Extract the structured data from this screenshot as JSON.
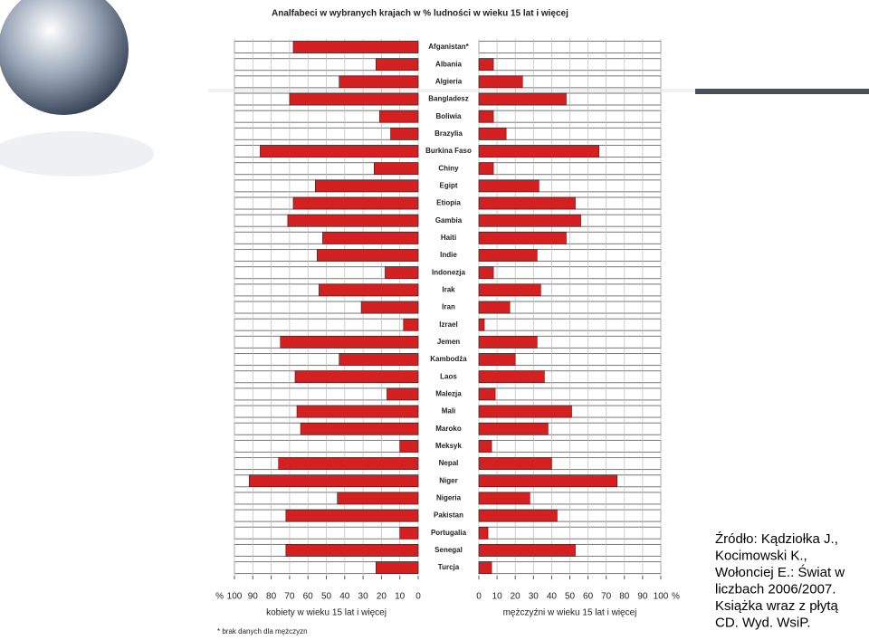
{
  "chart_data": {
    "type": "butterfly",
    "title": "Analfabeci w wybranych krajach w % ludności w wieku 15 lat i więcej",
    "categories": [
      "Afganistan*",
      "Albania",
      "Algieria",
      "Bangladesz",
      "Boliwia",
      "Brazylia",
      "Burkina Faso",
      "Chiny",
      "Egipt",
      "Etiopia",
      "Gambia",
      "Haiti",
      "Indie",
      "Indonezja",
      "Irak",
      "Iran",
      "Izrael",
      "Jemen",
      "Kambodża",
      "Laos",
      "Malezja",
      "Mali",
      "Maroko",
      "Meksyk",
      "Nepal",
      "Niger",
      "Nigeria",
      "Pakistan",
      "Portugalia",
      "Senegal",
      "Turcja"
    ],
    "series": [
      {
        "name": "kobiety w wieku 15 lat i więcej",
        "color": "#d42020",
        "values": [
          68,
          23,
          43,
          70,
          21,
          15,
          86,
          24,
          56,
          68,
          71,
          52,
          55,
          18,
          54,
          31,
          8,
          75,
          43,
          67,
          17,
          66,
          64,
          10,
          76,
          92,
          44,
          72,
          10,
          72,
          23
        ]
      },
      {
        "name": "mężczyźni w wieku 15 lat i więcej",
        "color": "#d42020",
        "values": [
          null,
          8,
          24,
          48,
          8,
          15,
          66,
          8,
          33,
          53,
          56,
          48,
          32,
          8,
          34,
          17,
          3,
          32,
          20,
          36,
          9,
          51,
          38,
          7,
          40,
          76,
          28,
          43,
          5,
          53,
          7
        ]
      }
    ],
    "xlim": [
      0,
      100
    ],
    "xticks": [
      0,
      10,
      20,
      30,
      40,
      50,
      60,
      70,
      80,
      90,
      100
    ],
    "unit_label": "%",
    "grid": true,
    "footnote": "* brak danych dla mężczyzn"
  },
  "source": [
    "Źródło: Kądziołka J.,",
    "Kocimowski K.,",
    "Wołonciej E.: Świat w",
    "liczbach 2006/2007.",
    "Książka wraz z płytą",
    "CD. Wyd. WsiP."
  ]
}
